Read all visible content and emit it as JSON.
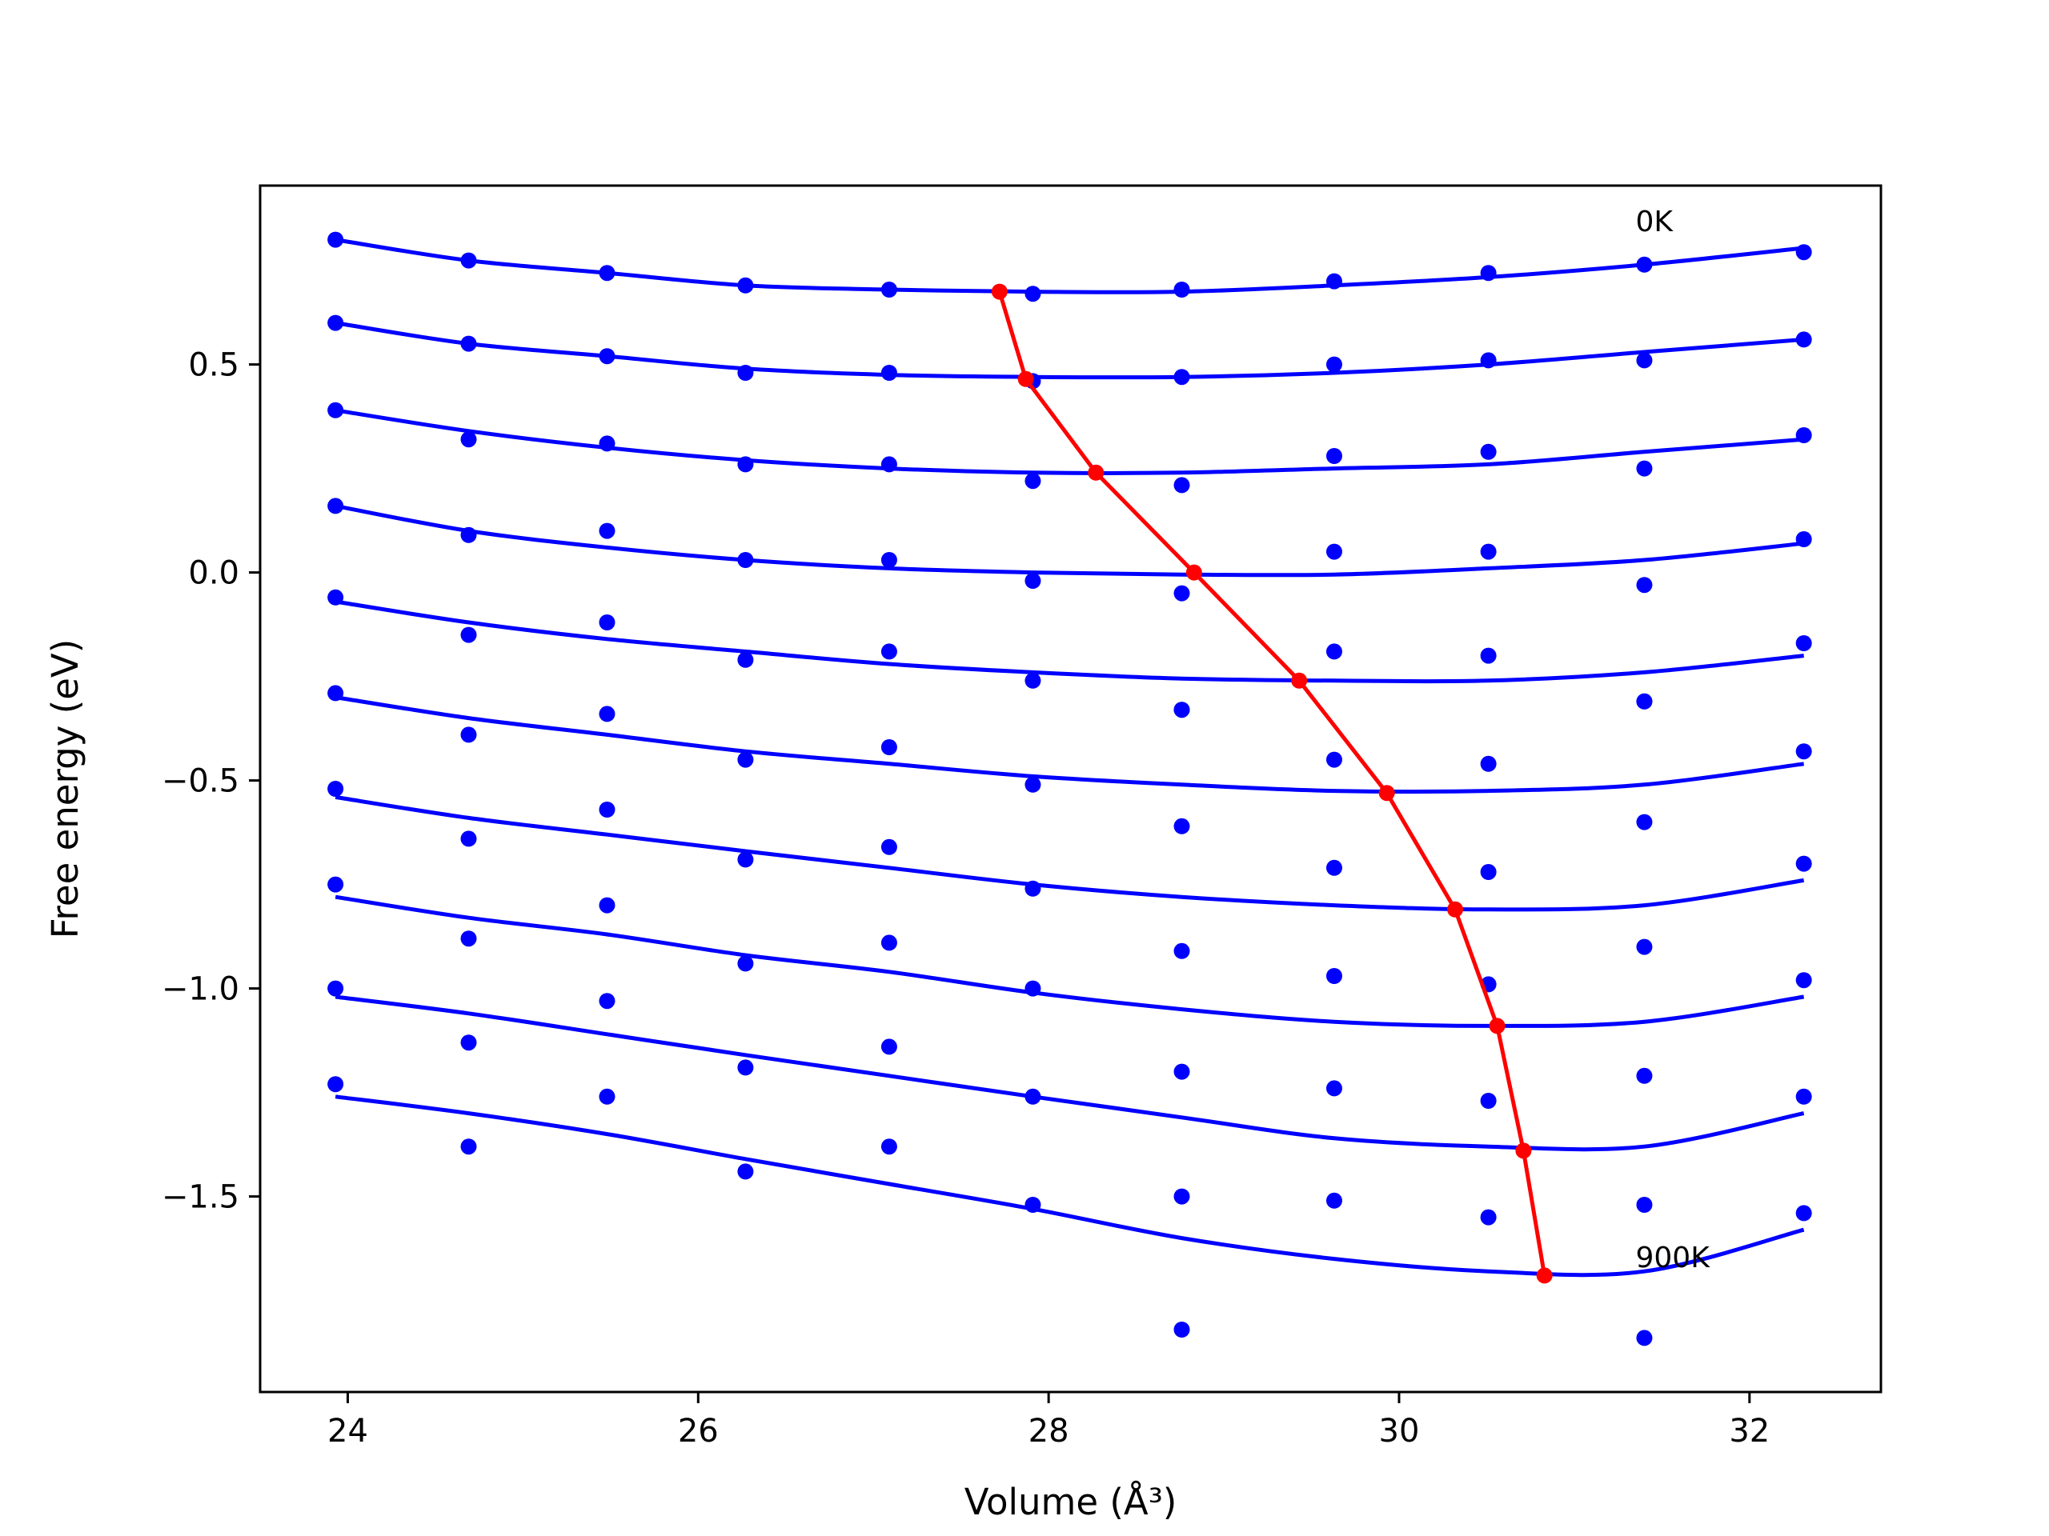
{
  "chart_data": {
    "type": "line",
    "xlabel": "Volume (Å³)",
    "ylabel": "Free energy (eV)",
    "xlim": [
      23.5,
      32.75
    ],
    "ylim": [
      -1.97,
      0.93
    ],
    "xticks": [
      24,
      26,
      28,
      30,
      32
    ],
    "xtick_labels": [
      "24",
      "26",
      "28",
      "30",
      "32"
    ],
    "yticks": [
      0.5,
      0.0,
      -0.5,
      -1.0,
      -1.5
    ],
    "ytick_labels": [
      "0.5",
      "0.0",
      "−0.5",
      "−1.0",
      "−1.5"
    ],
    "grid": false,
    "legend": "none",
    "colors": {
      "data": "#0000ff",
      "minimum_path": "#ff0000",
      "frame": "#000000"
    },
    "annotations": [
      {
        "text": "0K",
        "x": 31.35,
        "y": 0.82
      },
      {
        "text": "900K",
        "x": 31.35,
        "y": -1.67
      }
    ],
    "volumes": [
      23.93,
      24.69,
      25.48,
      26.27,
      27.09,
      27.91,
      28.76,
      29.63,
      30.51,
      31.4,
      32.31
    ],
    "series": [
      {
        "points": [
          0.8,
          0.75,
          0.72,
          0.69,
          0.68,
          0.67,
          0.68,
          0.7,
          0.72,
          0.74,
          0.77
        ],
        "curve": [
          0.8,
          0.75,
          0.72,
          0.69,
          0.68,
          0.675,
          0.675,
          0.69,
          0.71,
          0.74,
          0.78
        ]
      },
      {
        "points": [
          0.6,
          0.55,
          0.52,
          0.48,
          0.48,
          0.46,
          0.47,
          0.5,
          0.51,
          0.51,
          0.56
        ],
        "curve": [
          0.6,
          0.55,
          0.52,
          0.49,
          0.475,
          0.47,
          0.47,
          0.48,
          0.5,
          0.53,
          0.56
        ]
      },
      {
        "points": [
          0.39,
          0.32,
          0.31,
          0.26,
          0.26,
          0.22,
          0.21,
          0.28,
          0.29,
          0.25,
          0.33
        ],
        "curve": [
          0.39,
          0.34,
          0.3,
          0.27,
          0.25,
          0.24,
          0.24,
          0.25,
          0.26,
          0.29,
          0.32
        ]
      },
      {
        "points": [
          0.16,
          0.09,
          0.1,
          0.03,
          0.03,
          -0.02,
          -0.05,
          0.05,
          0.05,
          -0.03,
          0.08
        ],
        "curve": [
          0.16,
          0.1,
          0.06,
          0.03,
          0.01,
          0.0,
          -0.005,
          -0.005,
          0.01,
          0.03,
          0.07
        ]
      },
      {
        "points": [
          -0.06,
          -0.15,
          -0.12,
          -0.21,
          -0.19,
          -0.26,
          -0.33,
          -0.19,
          -0.2,
          -0.31,
          -0.17
        ],
        "curve": [
          -0.07,
          -0.12,
          -0.16,
          -0.19,
          -0.22,
          -0.24,
          -0.255,
          -0.26,
          -0.26,
          -0.24,
          -0.2
        ]
      },
      {
        "points": [
          -0.29,
          -0.39,
          -0.34,
          -0.45,
          -0.42,
          -0.51,
          -0.33,
          -0.45,
          -0.46,
          -0.31,
          -0.43
        ],
        "curve": [
          -0.3,
          -0.35,
          -0.39,
          -0.43,
          -0.46,
          -0.49,
          -0.51,
          -0.525,
          -0.525,
          -0.51,
          -0.46
        ]
      },
      {
        "points": [
          -0.52,
          -0.64,
          -0.57,
          -0.69,
          -0.66,
          -0.76,
          -0.61,
          -0.71,
          -0.72,
          -0.6,
          -0.7
        ],
        "curve": [
          -0.54,
          -0.59,
          -0.63,
          -0.67,
          -0.71,
          -0.75,
          -0.78,
          -0.8,
          -0.81,
          -0.8,
          -0.74
        ]
      },
      {
        "points": [
          -0.75,
          -0.88,
          -0.8,
          -0.94,
          -0.89,
          -1.0,
          -0.91,
          -0.97,
          -0.99,
          -0.9,
          -0.98
        ],
        "curve": [
          -0.78,
          -0.83,
          -0.87,
          -0.92,
          -0.96,
          -1.01,
          -1.05,
          -1.08,
          -1.09,
          -1.08,
          -1.02
        ]
      },
      {
        "points": [
          -1.0,
          -1.13,
          -1.03,
          -1.19,
          -1.14,
          -1.26,
          -1.2,
          -1.24,
          -1.27,
          -1.21,
          -1.26
        ],
        "curve": [
          -1.02,
          -1.06,
          -1.11,
          -1.16,
          -1.21,
          -1.26,
          -1.31,
          -1.36,
          -1.38,
          -1.38,
          -1.3
        ]
      },
      {
        "points": [
          -1.23,
          -1.38,
          -1.26,
          -1.44,
          -1.38,
          -1.52,
          -1.5,
          -1.51,
          -1.55,
          -1.52,
          -1.54
        ],
        "curve": [
          -1.26,
          -1.3,
          -1.35,
          -1.41,
          -1.47,
          -1.53,
          -1.6,
          -1.65,
          -1.68,
          -1.68,
          -1.58
        ]
      },
      {
        "points": [
          null,
          null,
          null,
          null,
          null,
          null,
          -1.82,
          null,
          null,
          -1.84,
          null
        ],
        "curve": []
      }
    ],
    "minimum_path": {
      "x": [
        27.72,
        27.87,
        28.27,
        28.83,
        29.43,
        29.93,
        30.32,
        30.56,
        30.71,
        30.83
      ],
      "y": [
        0.675,
        0.465,
        0.24,
        0.0,
        -0.26,
        -0.53,
        -0.81,
        -1.09,
        -1.39,
        -1.69
      ]
    }
  }
}
